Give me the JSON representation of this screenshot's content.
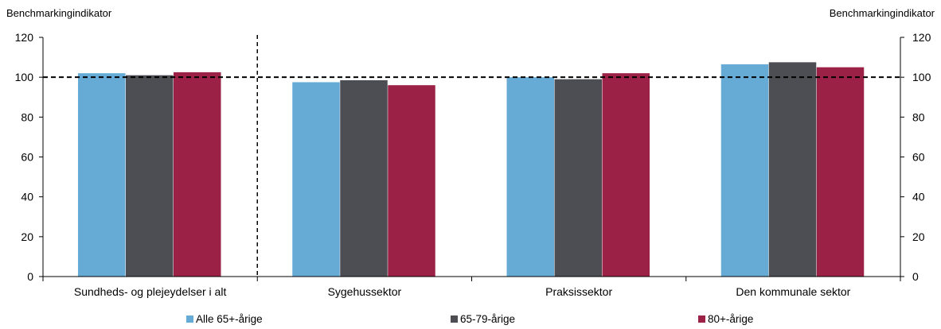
{
  "chart_data": {
    "type": "bar",
    "ylabel_left": "Benchmarkingindikator",
    "ylabel_right": "Benchmarkingindikator",
    "ylim": [
      0,
      120
    ],
    "yticks": [
      0,
      20,
      40,
      60,
      80,
      100,
      120
    ],
    "reference_line": 100,
    "categories": [
      "Sundheds- og plejeydelser i alt",
      "Sygehussektor",
      "Praksissektor",
      "Den kommunale sektor"
    ],
    "series": [
      {
        "name": "Alle 65+-årige",
        "color": "#65abd6",
        "values": [
          102,
          97.5,
          100,
          106.5
        ]
      },
      {
        "name": "65-79-årige",
        "color": "#4d4e53",
        "values": [
          101,
          98.5,
          99,
          107.5
        ]
      },
      {
        "name": "80+-årige",
        "color": "#9b2246",
        "values": [
          102.5,
          96,
          102,
          105
        ]
      }
    ],
    "legend_position": "bottom",
    "grid": false
  }
}
